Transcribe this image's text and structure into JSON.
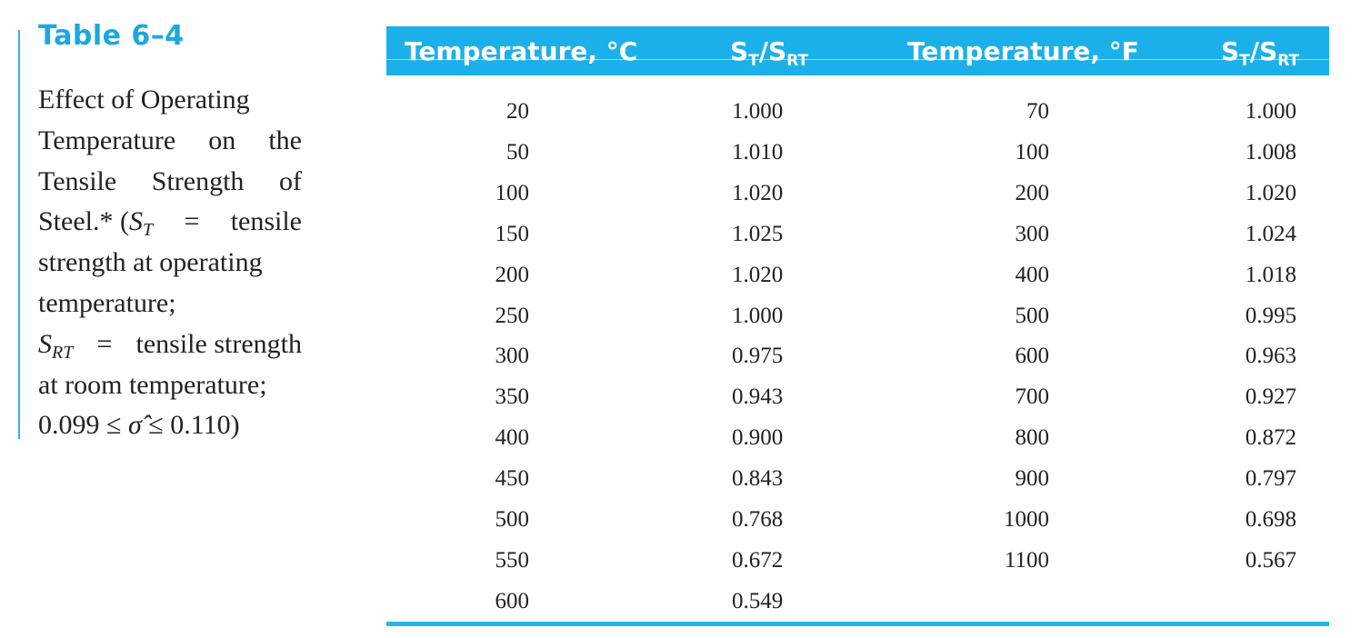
{
  "table": {
    "number": "Table 6–4",
    "caption_lines": {
      "l1": "Effect of Operating",
      "l2a": "Temperature",
      "l2b": "on",
      "l2c": "the",
      "l3a": "Tensile",
      "l3b": "Strength",
      "l3c": "of",
      "l4a": "Steel.* (",
      "l4_sym": "S",
      "l4_sub": "T",
      "l4b": "=",
      "l4c": "tensile",
      "l5": "strength at operating",
      "l6": "temperature;",
      "l7_sym": "S",
      "l7_sub": "RT",
      "l7a": "=",
      "l7b": "tensile strength",
      "l8": "at room temperature;",
      "l9a": "0.099 ≤",
      "l9_sym": "σ̂",
      "l9b": "≤ 0.110)"
    },
    "headers": {
      "temp_c": "Temperature, °C",
      "ratio_c_s": "S",
      "ratio_c_t": "T",
      "ratio_c_slash": "/S",
      "ratio_c_rt": "RT",
      "temp_f": "Temperature, °F",
      "ratio_f_s": "S",
      "ratio_f_t": "T",
      "ratio_f_slash": "/S",
      "ratio_f_rt": "RT"
    },
    "rows": [
      {
        "temp_c": "20",
        "ratio_c": "1.000",
        "temp_f": "70",
        "ratio_f": "1.000"
      },
      {
        "temp_c": "50",
        "ratio_c": "1.010",
        "temp_f": "100",
        "ratio_f": "1.008"
      },
      {
        "temp_c": "100",
        "ratio_c": "1.020",
        "temp_f": "200",
        "ratio_f": "1.020"
      },
      {
        "temp_c": "150",
        "ratio_c": "1.025",
        "temp_f": "300",
        "ratio_f": "1.024"
      },
      {
        "temp_c": "200",
        "ratio_c": "1.020",
        "temp_f": "400",
        "ratio_f": "1.018"
      },
      {
        "temp_c": "250",
        "ratio_c": "1.000",
        "temp_f": "500",
        "ratio_f": "0.995"
      },
      {
        "temp_c": "300",
        "ratio_c": "0.975",
        "temp_f": "600",
        "ratio_f": "0.963"
      },
      {
        "temp_c": "350",
        "ratio_c": "0.943",
        "temp_f": "700",
        "ratio_f": "0.927"
      },
      {
        "temp_c": "400",
        "ratio_c": "0.900",
        "temp_f": "800",
        "ratio_f": "0.872"
      },
      {
        "temp_c": "450",
        "ratio_c": "0.843",
        "temp_f": "900",
        "ratio_f": "0.797"
      },
      {
        "temp_c": "500",
        "ratio_c": "0.768",
        "temp_f": "1000",
        "ratio_f": "0.698"
      },
      {
        "temp_c": "550",
        "ratio_c": "0.672",
        "temp_f": "1100",
        "ratio_f": "0.567"
      },
      {
        "temp_c": "600",
        "ratio_c": "0.549",
        "temp_f": "",
        "ratio_f": ""
      }
    ]
  },
  "colors": {
    "accent": "#1cb0ea",
    "rule": "#29b6e8",
    "title": "#1aa8e0",
    "text": "#222222"
  }
}
